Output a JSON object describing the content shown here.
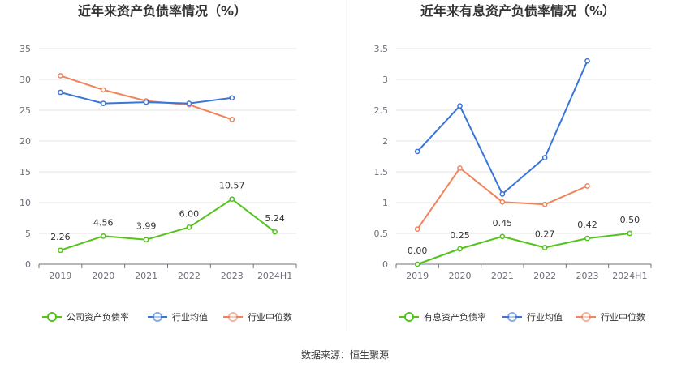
{
  "source": "数据来源：恒生聚源",
  "chart_data": [
    {
      "type": "line",
      "title": "近年来资产负债率情况（%）",
      "categories": [
        "2019",
        "2020",
        "2021",
        "2022",
        "2023",
        "2024H1"
      ],
      "ylim": [
        0,
        35
      ],
      "yticks": [
        "0",
        "5",
        "10",
        "15",
        "20",
        "25",
        "30",
        "35"
      ],
      "grid": true,
      "legend_position": "bottom",
      "series": [
        {
          "name": "公司资产负债率",
          "color": "#52c41a",
          "values": [
            2.26,
            4.56,
            3.99,
            6.0,
            10.57,
            5.24
          ],
          "labels": [
            "2.26",
            "4.56",
            "3.99",
            "6.00",
            "10.57",
            "5.24"
          ]
        },
        {
          "name": "行业均值",
          "color": "#3a75d8",
          "values": [
            27.9,
            26.1,
            26.3,
            26.1,
            27.0,
            null
          ]
        },
        {
          "name": "行业中位数",
          "color": "#f0835a",
          "values": [
            30.6,
            28.3,
            26.5,
            25.9,
            23.5,
            null
          ]
        }
      ]
    },
    {
      "type": "line",
      "title": "近年来有息资产负债率情况（%）",
      "categories": [
        "2019",
        "2020",
        "2021",
        "2022",
        "2023",
        "2024H1"
      ],
      "ylim": [
        0,
        3.5
      ],
      "yticks": [
        "0",
        "0.5",
        "1",
        "1.5",
        "2",
        "2.5",
        "3",
        "3.5"
      ],
      "grid": true,
      "legend_position": "bottom",
      "series": [
        {
          "name": "有息资产负债率",
          "color": "#52c41a",
          "values": [
            0.0,
            0.25,
            0.45,
            0.27,
            0.42,
            0.5
          ],
          "labels": [
            "0.00",
            "0.25",
            "0.45",
            "0.27",
            "0.42",
            "0.50"
          ]
        },
        {
          "name": "行业均值",
          "color": "#3a75d8",
          "values": [
            1.83,
            2.57,
            1.14,
            1.73,
            3.3,
            null
          ]
        },
        {
          "name": "行业中位数",
          "color": "#f0835a",
          "values": [
            0.57,
            1.56,
            1.01,
            0.97,
            1.27,
            null
          ]
        }
      ]
    }
  ]
}
